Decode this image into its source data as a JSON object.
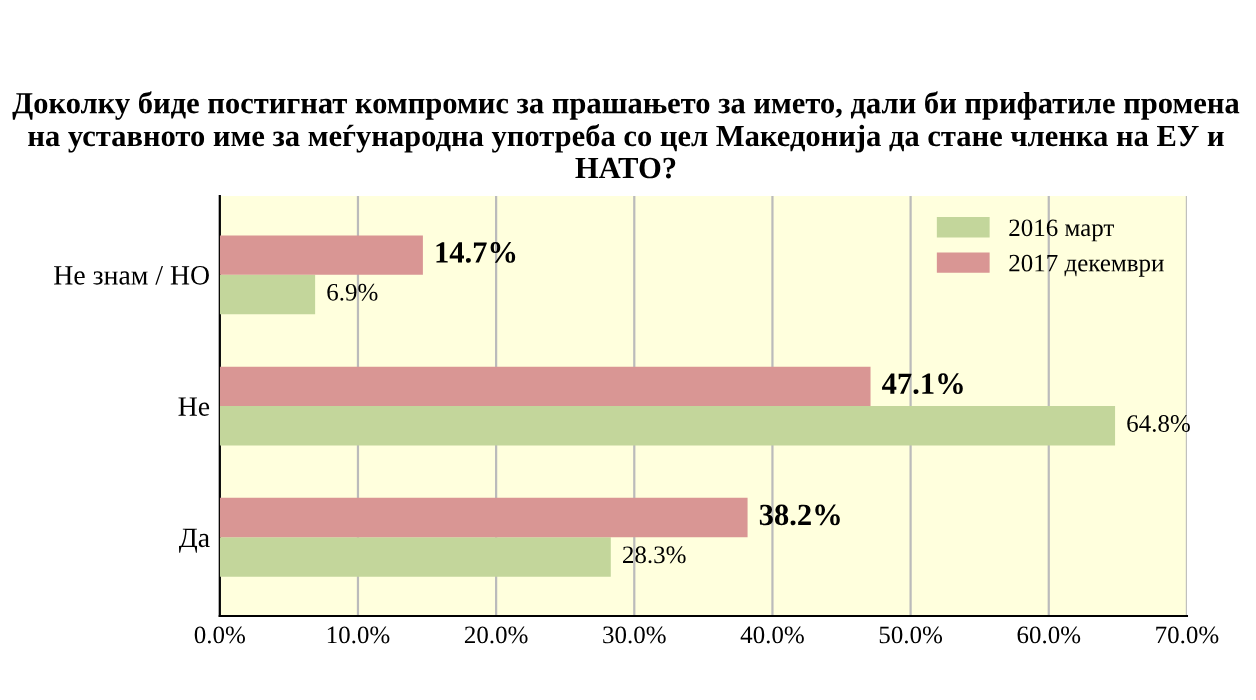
{
  "chart_data": {
    "type": "bar",
    "orientation": "horizontal",
    "title": "Доколку биде постигнат компромис за прашањето за името, дали би прифатиле промена на уставното име за меѓународна употреба со цел Македонија да стане членка на ЕУ и НАТО?",
    "categories": [
      "Не знам / НО",
      "Не",
      "Да"
    ],
    "series": [
      {
        "name": "2016 март",
        "color": "#c3d69b",
        "values": [
          6.9,
          64.8,
          28.3
        ],
        "value_labels": [
          "6.9%",
          "64.8%",
          "28.3%"
        ]
      },
      {
        "name": "2017 декември",
        "color": "#d99694",
        "values": [
          14.7,
          47.1,
          38.2
        ],
        "value_labels": [
          "14.7%",
          "47.1%",
          "38.2%"
        ]
      }
    ],
    "xlim": [
      0,
      70
    ],
    "xticks": [
      {
        "value": 0,
        "label": "0.0%"
      },
      {
        "value": 10,
        "label": "10.0%"
      },
      {
        "value": 20,
        "label": "20.0%"
      },
      {
        "value": 30,
        "label": "30.0%"
      },
      {
        "value": 40,
        "label": "40.0%"
      },
      {
        "value": 50,
        "label": "50.0%"
      },
      {
        "value": 60,
        "label": "60.0%"
      },
      {
        "value": 70,
        "label": "70.0%"
      }
    ],
    "grid": "x",
    "legend": "top right"
  }
}
